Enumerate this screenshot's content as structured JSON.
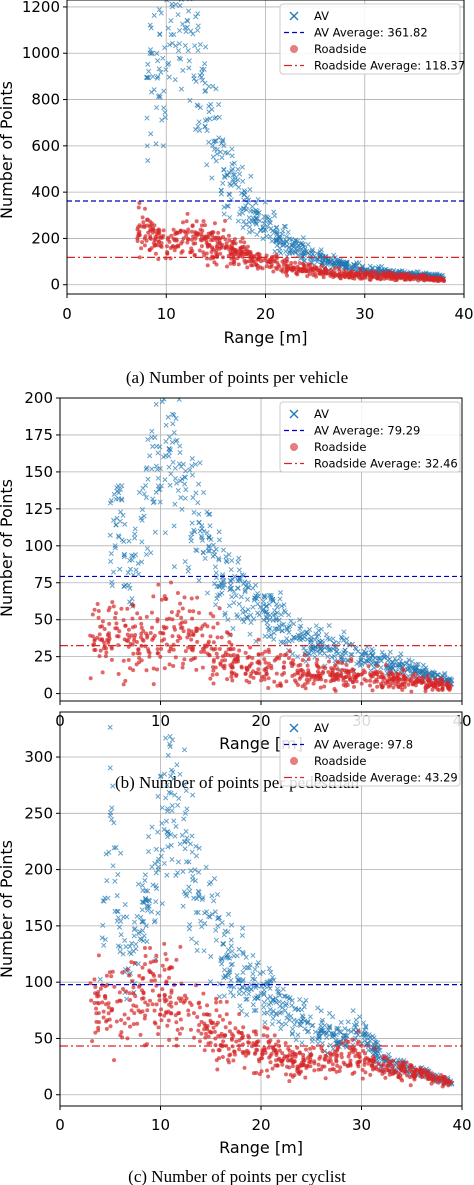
{
  "chart_data": [
    {
      "type": "scatter",
      "caption": "(a) Number of points per vehicle",
      "xlabel": "Range [m]",
      "ylabel": "Number of Points",
      "xlim": [
        0,
        40
      ],
      "ylim": [
        -40,
        1230
      ],
      "xticks": [
        0,
        10,
        20,
        30,
        40
      ],
      "yticks": [
        0,
        200,
        400,
        600,
        800,
        1000,
        1200
      ],
      "grid": true,
      "legend_position": "top-right",
      "series": [
        {
          "name": "AV",
          "kind": "scatter",
          "marker": "x",
          "color": "#1f77b4",
          "profile": [
            [
              8,
              820
            ],
            [
              9,
              950
            ],
            [
              10,
              980
            ],
            [
              11,
              1200
            ],
            [
              12,
              1050
            ],
            [
              13,
              900
            ],
            [
              14,
              750
            ],
            [
              15,
              600
            ],
            [
              16,
              480
            ],
            [
              17,
              400
            ],
            [
              18,
              350
            ],
            [
              19,
              300
            ],
            [
              20,
              250
            ],
            [
              22,
              180
            ],
            [
              25,
              120
            ],
            [
              28,
              80
            ],
            [
              32,
              55
            ],
            [
              36,
              40
            ],
            [
              38,
              30
            ]
          ],
          "spread": 0.28
        },
        {
          "name": "AV Average: 361.82",
          "kind": "hline",
          "value": 361.82,
          "color": "#0000cc",
          "dash": "5,3"
        },
        {
          "name": "Roadside",
          "kind": "scatter",
          "marker": "o",
          "color": "#d62728",
          "profile": [
            [
              7,
              250
            ],
            [
              8,
              210
            ],
            [
              10,
              190
            ],
            [
              12,
              200
            ],
            [
              14,
              190
            ],
            [
              16,
              170
            ],
            [
              18,
              130
            ],
            [
              20,
              100
            ],
            [
              22,
              80
            ],
            [
              25,
              60
            ],
            [
              28,
              45
            ],
            [
              32,
              40
            ],
            [
              36,
              30
            ],
            [
              38,
              20
            ]
          ],
          "spread": 0.35
        },
        {
          "name": "Roadside Average: 118.37",
          "kind": "hline",
          "value": 118.37,
          "color": "#d62728",
          "dash": "8,3,2,3"
        }
      ]
    },
    {
      "type": "scatter",
      "caption": "(b) Number of points per pedestrian",
      "xlabel": "Range [m]",
      "ylabel": "Number of Points",
      "xlim": [
        0,
        40
      ],
      "ylim": [
        -5,
        200
      ],
      "xticks": [
        0,
        10,
        20,
        30,
        40
      ],
      "yticks": [
        0,
        25,
        50,
        75,
        100,
        125,
        150,
        175,
        200
      ],
      "grid": true,
      "legend_position": "top-right",
      "series": [
        {
          "name": "AV",
          "kind": "scatter",
          "marker": "x",
          "color": "#1f77b4",
          "profile": [
            [
              5,
              110
            ],
            [
              6,
              120
            ],
            [
              7,
              70
            ],
            [
              8,
              110
            ],
            [
              9,
              140
            ],
            [
              10,
              160
            ],
            [
              11,
              170
            ],
            [
              12,
              150
            ],
            [
              13,
              130
            ],
            [
              14,
              110
            ],
            [
              15,
              95
            ],
            [
              16,
              80
            ],
            [
              18,
              70
            ],
            [
              20,
              55
            ],
            [
              22,
              45
            ],
            [
              25,
              35
            ],
            [
              28,
              28
            ],
            [
              32,
              22
            ],
            [
              36,
              15
            ],
            [
              39,
              8
            ]
          ],
          "spread": 0.3
        },
        {
          "name": "AV Average: 79.29",
          "kind": "hline",
          "value": 79.29,
          "color": "#0000cc",
          "dash": "5,3"
        },
        {
          "name": "Roadside",
          "kind": "scatter",
          "marker": "o",
          "color": "#d62728",
          "profile": [
            [
              3,
              40
            ],
            [
              5,
              40
            ],
            [
              7,
              35
            ],
            [
              9,
              35
            ],
            [
              11,
              45
            ],
            [
              13,
              40
            ],
            [
              15,
              30
            ],
            [
              17,
              25
            ],
            [
              19,
              20
            ],
            [
              21,
              18
            ],
            [
              24,
              15
            ],
            [
              28,
              12
            ],
            [
              32,
              10
            ],
            [
              36,
              8
            ],
            [
              39,
              5
            ]
          ],
          "spread": 0.6
        },
        {
          "name": "Roadside Average: 32.46",
          "kind": "hline",
          "value": 32.46,
          "color": "#d62728",
          "dash": "8,3,2,3"
        }
      ]
    },
    {
      "type": "scatter",
      "caption": "(c) Number of points per cyclist",
      "xlabel": "Range [m]",
      "ylabel": "Number of Points",
      "xlim": [
        0,
        40
      ],
      "ylim": [
        -10,
        340
      ],
      "xticks": [
        0,
        10,
        20,
        30,
        40
      ],
      "yticks": [
        0,
        50,
        100,
        150,
        200,
        250,
        300
      ],
      "grid": true,
      "legend_position": "top-right",
      "series": [
        {
          "name": "AV",
          "kind": "scatter",
          "marker": "x",
          "color": "#1f77b4",
          "profile": [
            [
              4,
              120
            ],
            [
              5,
              250
            ],
            [
              6,
              150
            ],
            [
              7,
              120
            ],
            [
              8,
              150
            ],
            [
              9,
              190
            ],
            [
              10,
              220
            ],
            [
              11,
              280
            ],
            [
              12,
              240
            ],
            [
              13,
              200
            ],
            [
              14,
              170
            ],
            [
              15,
              150
            ],
            [
              16,
              130
            ],
            [
              18,
              110
            ],
            [
              20,
              95
            ],
            [
              22,
              80
            ],
            [
              25,
              60
            ],
            [
              28,
              50
            ],
            [
              30,
              60
            ],
            [
              32,
              30
            ],
            [
              36,
              20
            ],
            [
              39,
              10
            ]
          ],
          "spread": 0.25
        },
        {
          "name": "AV Average: 97.8",
          "kind": "hline",
          "value": 97.8,
          "color": "#0000cc",
          "dash": "5,3"
        },
        {
          "name": "Roadside",
          "kind": "scatter",
          "marker": "o",
          "color": "#d62728",
          "profile": [
            [
              3,
              80
            ],
            [
              5,
              75
            ],
            [
              7,
              80
            ],
            [
              9,
              85
            ],
            [
              11,
              90
            ],
            [
              13,
              75
            ],
            [
              15,
              60
            ],
            [
              17,
              50
            ],
            [
              20,
              40
            ],
            [
              23,
              30
            ],
            [
              26,
              30
            ],
            [
              29,
              35
            ],
            [
              32,
              25
            ],
            [
              36,
              18
            ],
            [
              39,
              10
            ]
          ],
          "spread": 0.4
        },
        {
          "name": "Roadside Average: 43.29",
          "kind": "hline",
          "value": 43.29,
          "color": "#d62728",
          "dash": "8,3,2,3"
        }
      ]
    }
  ]
}
